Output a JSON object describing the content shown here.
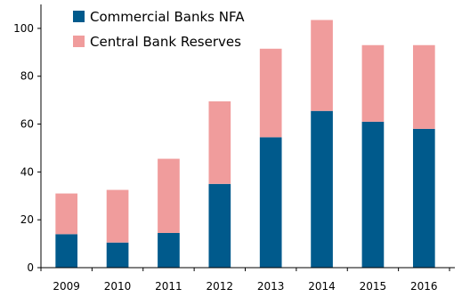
{
  "chart_data": {
    "type": "bar",
    "stacked": true,
    "title": "",
    "xlabel": "",
    "ylabel": "",
    "ylim": [
      0,
      110
    ],
    "yticks": [
      0,
      20,
      40,
      60,
      80,
      100
    ],
    "categories": [
      "2009",
      "2010",
      "2011",
      "2012",
      "2013",
      "2014",
      "2015",
      "2016"
    ],
    "series": [
      {
        "name": "Commercial Banks NFA",
        "color": "#005a8c",
        "values": [
          14,
          10.5,
          14.5,
          35,
          54.5,
          65.5,
          61,
          58
        ]
      },
      {
        "name": "Central Bank Reserves",
        "color": "#f09c9c",
        "values": [
          17,
          22,
          31,
          34.5,
          37,
          38,
          32,
          35
        ]
      }
    ],
    "grid": false,
    "legend": "top-left"
  }
}
